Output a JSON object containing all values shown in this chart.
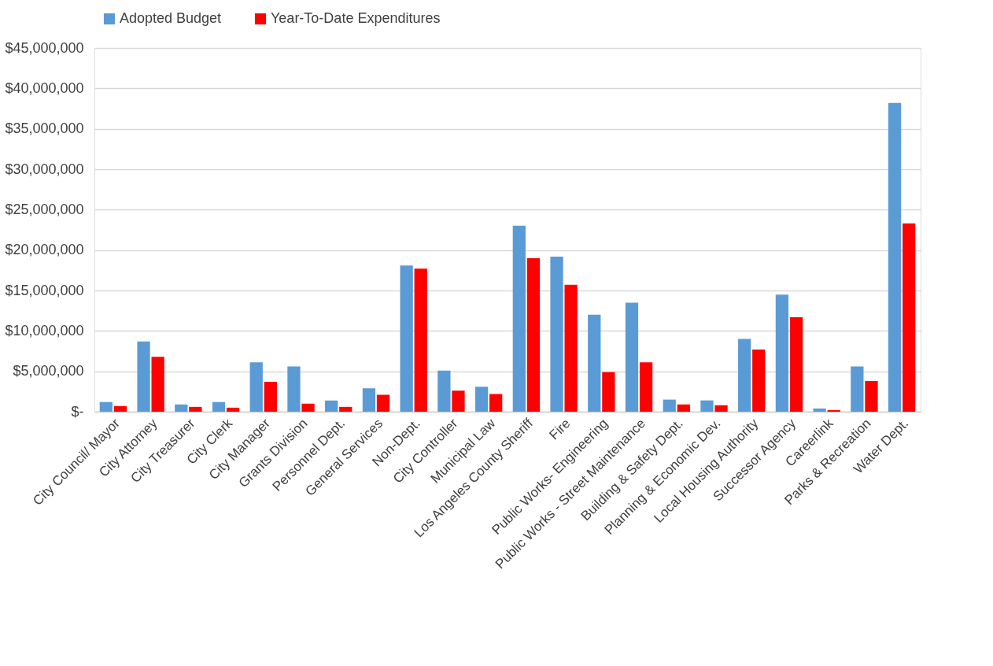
{
  "chart_data": {
    "type": "bar",
    "categories": [
      "City Council/ Mayor",
      "City Attorney",
      "City Treasurer",
      "City Clerk",
      "City Manager",
      "Grants Division",
      "Personnel Dept.",
      "General Services",
      "Non-Dept.",
      "City Controller",
      "Municipal Law",
      "Los Angeles County Sheriff",
      "Fire",
      "Public Works- Engineering",
      "Public Works - Street Maintenance",
      "Building & Safety Dept.",
      "Planning & Economic Dev.",
      "Local Housing Authority",
      "Successor Agency",
      "Careerlink",
      "Parks & Recreation",
      "Water Dept."
    ],
    "series": [
      {
        "name": "Adopted Budget",
        "color": "#5b9bd5",
        "values": [
          1200000,
          8700000,
          900000,
          1200000,
          6100000,
          5600000,
          1400000,
          2900000,
          18100000,
          5100000,
          3100000,
          23000000,
          19200000,
          12000000,
          13500000,
          1500000,
          1400000,
          9000000,
          14500000,
          400000,
          5600000,
          38200000
        ]
      },
      {
        "name": "Year-To-Date Expenditures",
        "color": "#ff0000",
        "values": [
          700000,
          6800000,
          600000,
          500000,
          3700000,
          1000000,
          600000,
          2100000,
          17700000,
          2600000,
          2200000,
          19000000,
          15700000,
          4900000,
          6100000,
          900000,
          800000,
          7700000,
          11700000,
          200000,
          3800000,
          23300000
        ]
      }
    ],
    "ylim": [
      0,
      45000000
    ],
    "yticks": [
      {
        "value": 0,
        "label": "$-"
      },
      {
        "value": 5000000,
        "label": "$5,000,000"
      },
      {
        "value": 10000000,
        "label": "$10,000,000"
      },
      {
        "value": 15000000,
        "label": "$15,000,000"
      },
      {
        "value": 20000000,
        "label": "$20,000,000"
      },
      {
        "value": 25000000,
        "label": "$25,000,000"
      },
      {
        "value": 30000000,
        "label": "$30,000,000"
      },
      {
        "value": 35000000,
        "label": "$35,000,000"
      },
      {
        "value": 40000000,
        "label": "$40,000,000"
      },
      {
        "value": 45000000,
        "label": "$45,000,000"
      }
    ],
    "grid": "y",
    "legend": "top"
  }
}
